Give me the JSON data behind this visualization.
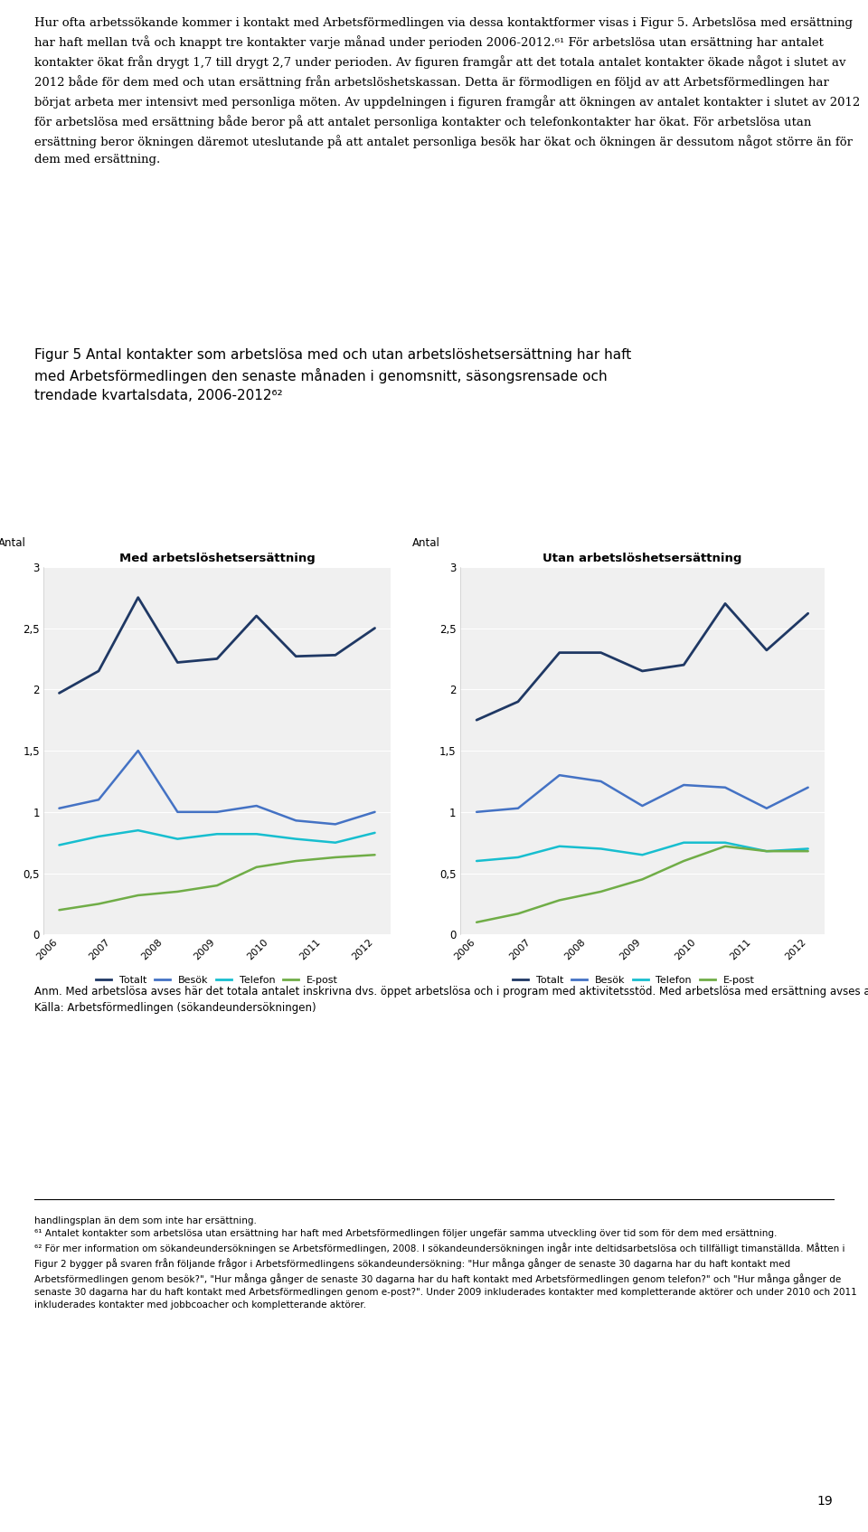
{
  "title_fig": "Figur 5 Antal kontakter som arbetslösa med och utan arbetslöshetsersättning har haft\nmed Arbetsförmedlingen den senaste månaden i genomsnitt, säsongsrensade och\ntrendade kvartalsdata, 2006-2012²",
  "body_text_top": "Hur ofta arbetssökande kommer i kontakt med Arbetsförmedlingen via dessa kontaktformer visas i Figur 5. Arbetslösa med ersättning har haft mellan två och knappt tre kontakter varje månad under perioden 2006-2012.⁶¹ För arbetslösa utan ersättning har antalet kontakter ökat från drygt 1,7 till drygt 2,7 under perioden. Av figuren framgår att det totala antalet kontakter ökade något i slutet av 2012 både för dem med och utan ersättning från arbetslöshetskassan. Detta är förmodligen en följd av att Arbetsförmedlingen har börjat arbeta mer intensivt med personliga möten. Av uppdelningen i figuren framgår att ökningen av antalet kontakter i slutet av 2012 för arbetslösa med ersättning både beror på att antalet personliga kontakter och telefonkontakter har ökat. För arbetslösa utan ersättning beror ökningen däremot uteslutande på att antalet personliga besök har ökat och ökningen är dessutom något större än för dem med ersättning.",
  "anm_text": "Anm. Med arbetslösa avses här det totala antalet inskrivna dvs. öppet arbetslösa och i program med aktivitetsstöd. Med arbetslösa med ersättning avses arbetslösa med registrerad a-kassekod i AIS.\nKälla: Arbetsförmedlingen (sökandeundersökningen)",
  "footnote_text": "handlingsplan än dem som inte har ersättning.\n⁶¹ Antalet kontakter som arbetslösa utan ersättning har haft med Arbetsförmedlingen följer ungefär samma utveckling över tid som för dem med ersättning.\n⁶² För mer information om sökandeundersökningen se Arbetsförmedlingen, 2008. I sökandeundersökningen ingår inte deltidsarbetslösa och tillfälligt timanställda. Måtten i Figur 2 bygger på svaren från följande frågor i Arbetsförmedlingens sökandeundersökning: \"Hur många gånger de senaste 30 dagarna har du haft kontakt med Arbetsförmedlingen genom besök?\", \"Hur många gånger de senaste 30 dagarna har du haft kontakt med Arbetsförmedlingen genom telefon?\" och \"Hur många gånger de senaste 30 dagarna har du haft kontakt med Arbetsförmedlingen genom e-post?\". Under 2009 inkluderades kontakter med kompletterande aktörer och under 2010 och 2011 inkluderades kontakter med jobbcoacher och kompletterande aktörer.",
  "left_chart_title": "Med arbetslöshetsersättning",
  "right_chart_title": "Utan arbetslöshetsersättning",
  "ylabel": "Antal",
  "ylim": [
    0,
    3
  ],
  "yticks": [
    0,
    0.5,
    1,
    1.5,
    2,
    2.5,
    3
  ],
  "years": [
    "2006",
    "2007",
    "2008",
    "2009",
    "2010",
    "2011",
    "2012"
  ],
  "left_total": [
    1.97,
    2.15,
    2.75,
    2.22,
    2.25,
    2.6,
    2.27,
    2.28,
    2.5
  ],
  "left_besok": [
    1.03,
    1.1,
    1.5,
    1.0,
    1.0,
    1.05,
    0.93,
    0.9,
    1.0
  ],
  "left_telefon": [
    0.73,
    0.8,
    0.85,
    0.78,
    0.82,
    0.82,
    0.78,
    0.75,
    0.83
  ],
  "left_epost": [
    0.2,
    0.25,
    0.32,
    0.35,
    0.4,
    0.55,
    0.6,
    0.63,
    0.65
  ],
  "right_total": [
    1.75,
    1.9,
    2.3,
    2.3,
    2.15,
    2.2,
    2.7,
    2.32,
    2.62
  ],
  "right_besok": [
    1.0,
    1.03,
    1.3,
    1.25,
    1.05,
    1.22,
    1.2,
    1.03,
    1.2
  ],
  "right_telefon": [
    0.6,
    0.63,
    0.72,
    0.7,
    0.65,
    0.75,
    0.75,
    0.68,
    0.7
  ],
  "right_epost": [
    0.1,
    0.17,
    0.28,
    0.35,
    0.45,
    0.6,
    0.72,
    0.68,
    0.68
  ],
  "color_total": "#1f3864",
  "color_besok": "#4472c4",
  "color_telefon": "#17becf",
  "color_epost": "#70ad47",
  "legend_labels": [
    "Totalt",
    "Besök",
    "Telefon",
    "E-post"
  ],
  "page_number": "19",
  "bg_color": "#ffffff"
}
